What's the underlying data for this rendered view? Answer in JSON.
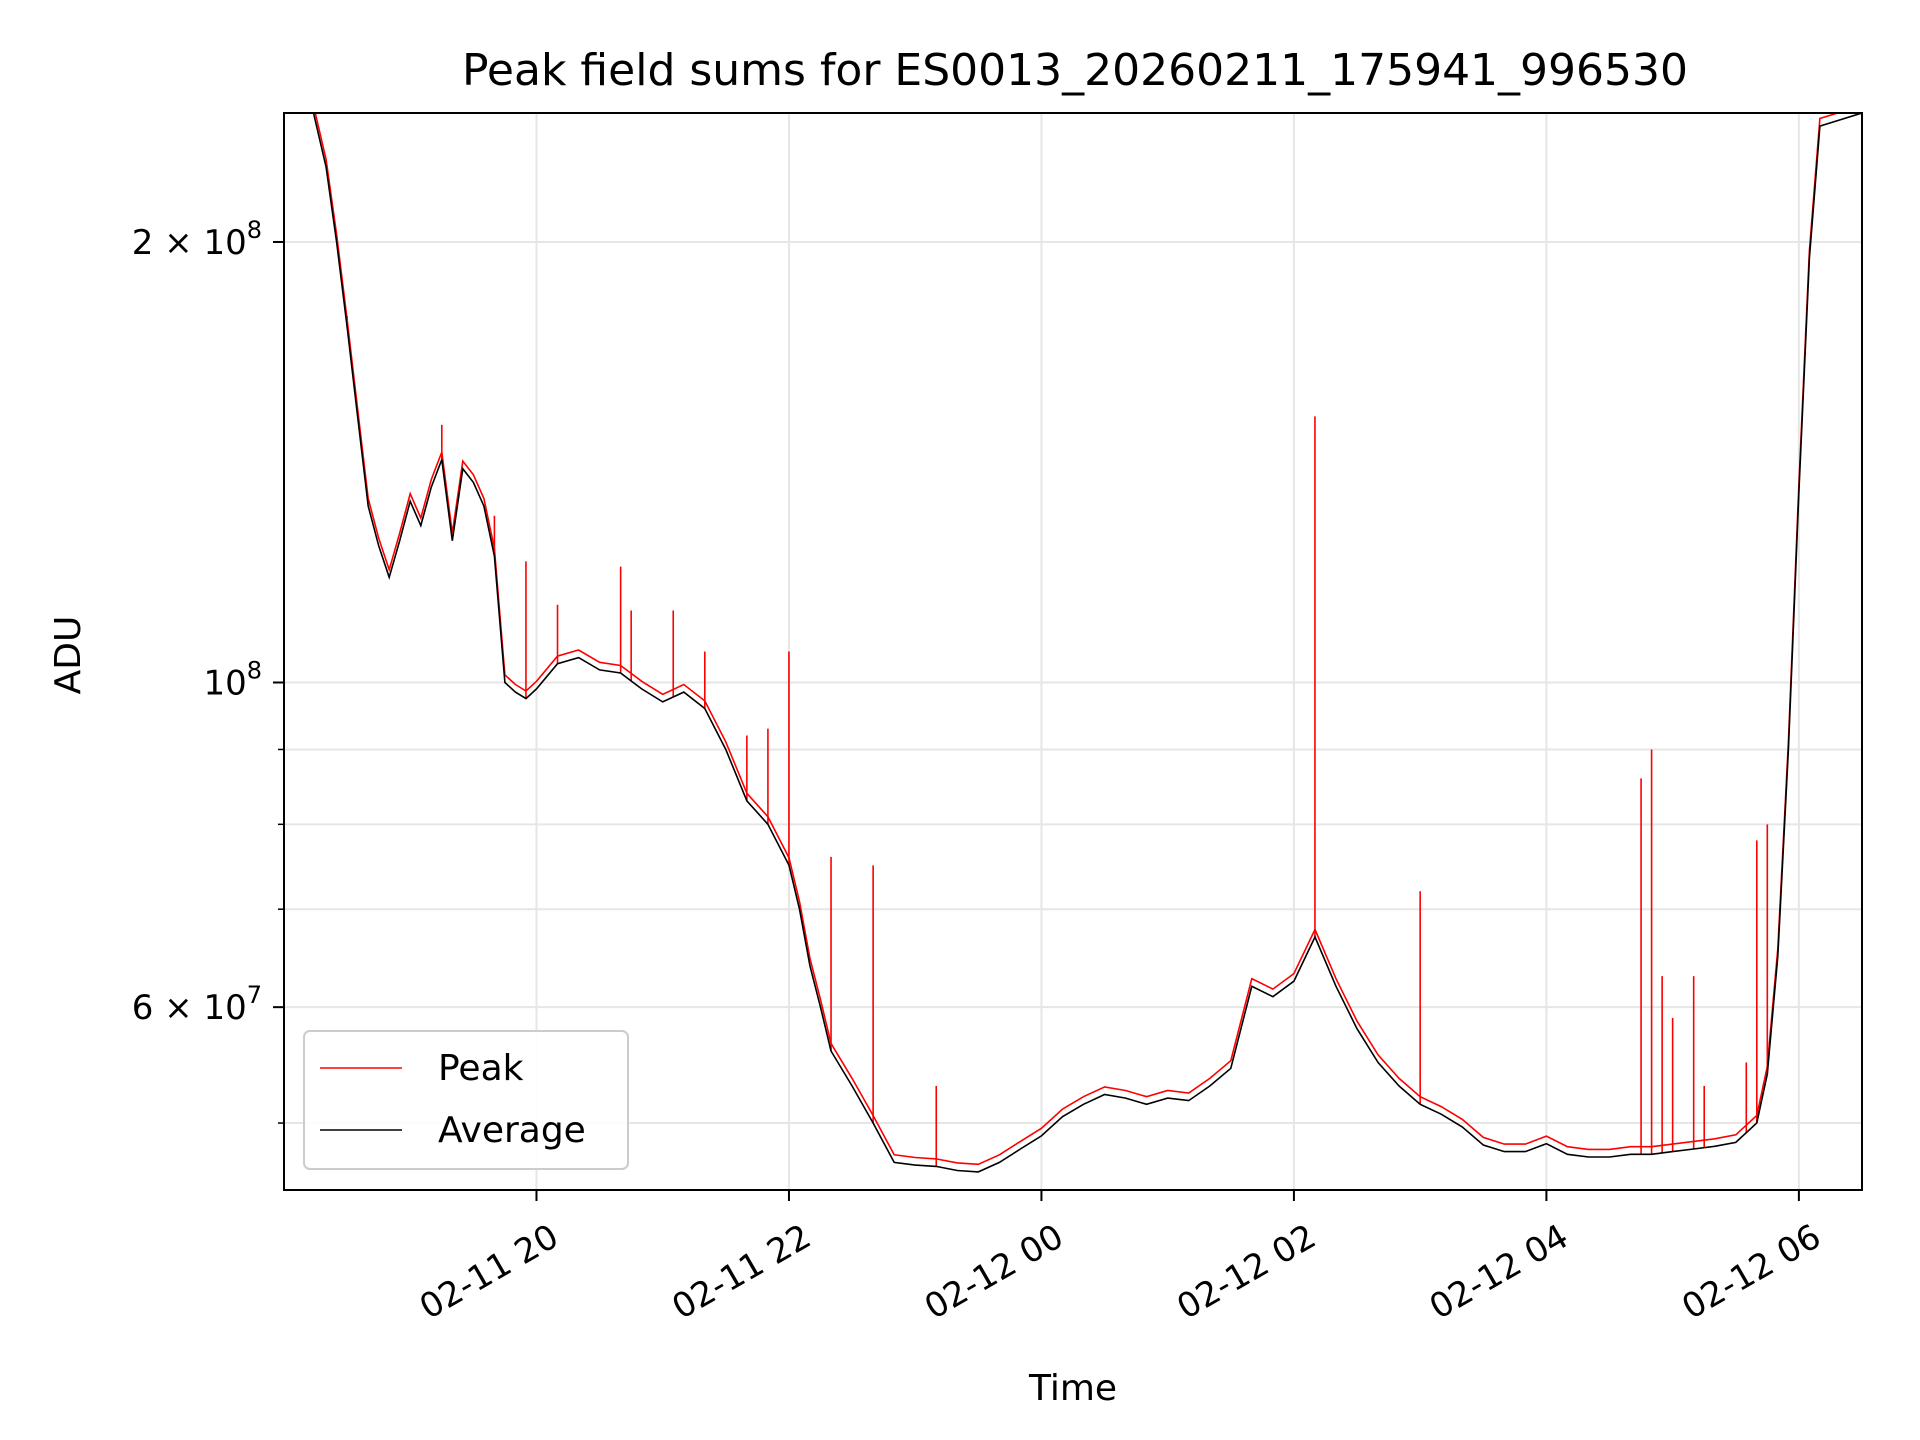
{
  "chart_data": {
    "type": "line",
    "title": "Peak field sums for ES0013_20260211_175941_996530",
    "xlabel": "Time",
    "ylabel": "ADU",
    "x_scale": "time",
    "y_scale": "log",
    "xlim": [
      "2026-02-11 18:00",
      "2026-02-12 06:30"
    ],
    "ylim": [
      45000000,
      245000000
    ],
    "grid": true,
    "legend_position": "lower-left",
    "x_ticks": [
      {
        "value": "2026-02-11 20:00",
        "label": "02-11 20"
      },
      {
        "value": "2026-02-11 22:00",
        "label": "02-11 22"
      },
      {
        "value": "2026-02-12 00:00",
        "label": "02-12 00"
      },
      {
        "value": "2026-02-12 02:00",
        "label": "02-12 02"
      },
      {
        "value": "2026-02-12 04:00",
        "label": "02-12 04"
      },
      {
        "value": "2026-02-12 06:00",
        "label": "02-12 06"
      }
    ],
    "y_major_ticks": [
      {
        "value": 200000000,
        "mantissa": "2 × 10",
        "exponent": "8"
      },
      {
        "value": 100000000,
        "mantissa": "10",
        "exponent": "8"
      },
      {
        "value": 60000000,
        "mantissa": "6 × 10",
        "exponent": "7"
      }
    ],
    "y_minor_ticks": [
      50000000,
      70000000,
      80000000,
      90000000
    ],
    "series": [
      {
        "name": "Average",
        "color": "#000000",
        "points": [
          [
            "2026-02-11 18:14",
            245000000
          ],
          [
            "2026-02-11 18:20",
            225000000
          ],
          [
            "2026-02-11 18:25",
            200000000
          ],
          [
            "2026-02-11 18:30",
            175000000
          ],
          [
            "2026-02-11 18:35",
            152000000
          ],
          [
            "2026-02-11 18:40",
            132000000
          ],
          [
            "2026-02-11 18:45",
            124000000
          ],
          [
            "2026-02-11 18:50",
            118000000
          ],
          [
            "2026-02-11 18:55",
            125000000
          ],
          [
            "2026-02-11 19:00",
            133000000
          ],
          [
            "2026-02-11 19:05",
            128000000
          ],
          [
            "2026-02-11 19:10",
            136000000
          ],
          [
            "2026-02-11 19:15",
            142000000
          ],
          [
            "2026-02-11 19:20",
            125000000
          ],
          [
            "2026-02-11 19:25",
            140000000
          ],
          [
            "2026-02-11 19:30",
            137000000
          ],
          [
            "2026-02-11 19:35",
            132000000
          ],
          [
            "2026-02-11 19:40",
            122000000
          ],
          [
            "2026-02-11 19:45",
            100000000
          ],
          [
            "2026-02-11 19:50",
            98500000
          ],
          [
            "2026-02-11 19:55",
            97500000
          ],
          [
            "2026-02-11 20:00",
            99000000
          ],
          [
            "2026-02-11 20:10",
            103000000
          ],
          [
            "2026-02-11 20:20",
            104000000
          ],
          [
            "2026-02-11 20:30",
            102000000
          ],
          [
            "2026-02-11 20:40",
            101500000
          ],
          [
            "2026-02-11 20:50",
            99000000
          ],
          [
            "2026-02-11 21:00",
            97000000
          ],
          [
            "2026-02-11 21:10",
            98500000
          ],
          [
            "2026-02-11 21:20",
            96000000
          ],
          [
            "2026-02-11 21:30",
            90000000
          ],
          [
            "2026-02-11 21:40",
            83000000
          ],
          [
            "2026-02-11 21:50",
            80000000
          ],
          [
            "2026-02-11 22:00",
            75000000
          ],
          [
            "2026-02-11 22:05",
            70000000
          ],
          [
            "2026-02-11 22:10",
            64000000
          ],
          [
            "2026-02-11 22:15",
            60000000
          ],
          [
            "2026-02-11 22:20",
            56000000
          ],
          [
            "2026-02-11 22:30",
            53000000
          ],
          [
            "2026-02-11 22:40",
            50000000
          ],
          [
            "2026-02-11 22:50",
            47000000
          ],
          [
            "2026-02-11 23:00",
            46800000
          ],
          [
            "2026-02-11 23:10",
            46700000
          ],
          [
            "2026-02-11 23:20",
            46400000
          ],
          [
            "2026-02-11 23:30",
            46300000
          ],
          [
            "2026-02-11 23:40",
            47000000
          ],
          [
            "2026-02-11 23:50",
            48000000
          ],
          [
            "2026-02-12 00:00",
            49000000
          ],
          [
            "2026-02-12 00:10",
            50500000
          ],
          [
            "2026-02-12 00:20",
            51500000
          ],
          [
            "2026-02-12 00:30",
            52300000
          ],
          [
            "2026-02-12 00:40",
            52000000
          ],
          [
            "2026-02-12 00:50",
            51500000
          ],
          [
            "2026-02-12 01:00",
            52000000
          ],
          [
            "2026-02-12 01:10",
            51800000
          ],
          [
            "2026-02-12 01:20",
            53000000
          ],
          [
            "2026-02-12 01:30",
            54500000
          ],
          [
            "2026-02-12 01:40",
            62000000
          ],
          [
            "2026-02-12 01:50",
            61000000
          ],
          [
            "2026-02-12 02:00",
            62500000
          ],
          [
            "2026-02-12 02:10",
            67000000
          ],
          [
            "2026-02-12 02:20",
            62000000
          ],
          [
            "2026-02-12 02:30",
            58000000
          ],
          [
            "2026-02-12 02:40",
            55000000
          ],
          [
            "2026-02-12 02:50",
            53000000
          ],
          [
            "2026-02-12 03:00",
            51500000
          ],
          [
            "2026-02-12 03:10",
            50700000
          ],
          [
            "2026-02-12 03:20",
            49700000
          ],
          [
            "2026-02-12 03:30",
            48300000
          ],
          [
            "2026-02-12 03:40",
            47800000
          ],
          [
            "2026-02-12 03:50",
            47800000
          ],
          [
            "2026-02-12 04:00",
            48400000
          ],
          [
            "2026-02-12 04:10",
            47600000
          ],
          [
            "2026-02-12 04:20",
            47400000
          ],
          [
            "2026-02-12 04:30",
            47400000
          ],
          [
            "2026-02-12 04:40",
            47600000
          ],
          [
            "2026-02-12 04:50",
            47600000
          ],
          [
            "2026-02-12 05:00",
            47800000
          ],
          [
            "2026-02-12 05:10",
            48000000
          ],
          [
            "2026-02-12 05:20",
            48200000
          ],
          [
            "2026-02-12 05:30",
            48500000
          ],
          [
            "2026-02-12 05:40",
            50000000
          ],
          [
            "2026-02-12 05:45",
            54000000
          ],
          [
            "2026-02-12 05:50",
            65000000
          ],
          [
            "2026-02-12 05:55",
            90000000
          ],
          [
            "2026-02-12 06:00",
            135000000
          ],
          [
            "2026-02-12 06:05",
            195000000
          ],
          [
            "2026-02-12 06:10",
            240000000
          ],
          [
            "2026-02-12 06:30",
            245000000
          ]
        ]
      },
      {
        "name": "Peak",
        "color": "#ff0000",
        "spikes": [
          [
            "2026-02-11 18:30",
            178000000
          ],
          [
            "2026-02-11 19:15",
            150000000
          ],
          [
            "2026-02-11 19:25",
            140000000
          ],
          [
            "2026-02-11 19:40",
            130000000
          ],
          [
            "2026-02-11 19:55",
            121000000
          ],
          [
            "2026-02-11 20:10",
            113000000
          ],
          [
            "2026-02-11 20:40",
            120000000
          ],
          [
            "2026-02-11 20:45",
            112000000
          ],
          [
            "2026-02-11 21:05",
            112000000
          ],
          [
            "2026-02-11 21:20",
            105000000
          ],
          [
            "2026-02-11 21:40",
            92000000
          ],
          [
            "2026-02-11 21:50",
            93000000
          ],
          [
            "2026-02-11 22:00",
            105000000
          ],
          [
            "2026-02-11 22:20",
            76000000
          ],
          [
            "2026-02-11 22:40",
            75000000
          ],
          [
            "2026-02-11 23:10",
            53000000
          ],
          [
            "2026-02-12 02:10",
            152000000
          ],
          [
            "2026-02-12 03:00",
            72000000
          ],
          [
            "2026-02-12 04:45",
            86000000
          ],
          [
            "2026-02-12 04:50",
            90000000
          ],
          [
            "2026-02-12 04:55",
            63000000
          ],
          [
            "2026-02-12 05:00",
            59000000
          ],
          [
            "2026-02-12 05:10",
            63000000
          ],
          [
            "2026-02-12 05:15",
            53000000
          ],
          [
            "2026-02-12 05:35",
            55000000
          ],
          [
            "2026-02-12 05:40",
            78000000
          ],
          [
            "2026-02-12 05:45",
            80000000
          ],
          [
            "2026-02-12 05:55",
            90000000
          ]
        ]
      }
    ]
  }
}
